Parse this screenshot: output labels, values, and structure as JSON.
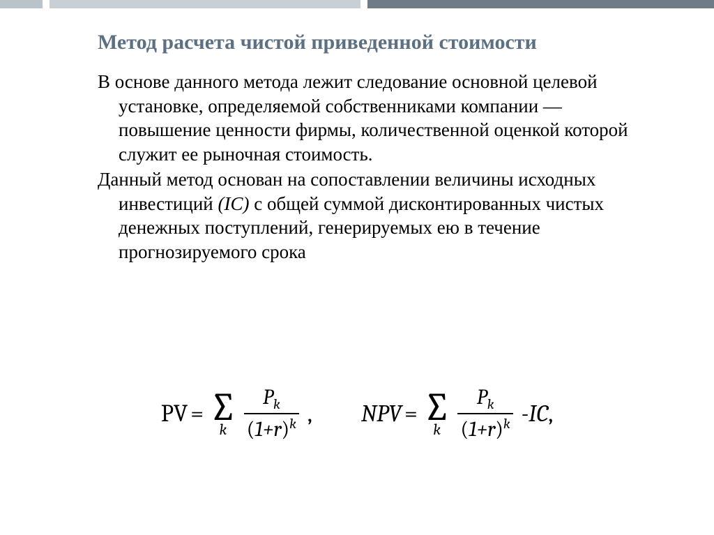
{
  "topbar": {
    "color_a": "#b9c3c9",
    "color_b": "#c8d0d5",
    "color_c": "#6e7c87"
  },
  "title": {
    "text": "Метод расчета чистой приведенной стоимости",
    "color": "#5b7083",
    "fontsize_pt": 22
  },
  "body": {
    "color": "#000000",
    "fontsize_pt": 20,
    "paragraphs": [
      {
        "plain": "В основе данного метода лежит следование основной целевой установке, определяемой собственниками компании — повышение ценности фирмы, количественной оценкой которой служит ее рыночная стоимость."
      },
      {
        "before_italic": "Данный метод основан на сопоставлении величины исходных инвестиций ",
        "italic": "(IC)",
        "after_italic": " с общей суммой дисконтированных чистых денежных поступлений, генерируемых ею в течение прогнозируемого срока"
      }
    ]
  },
  "formulas": {
    "pv": {
      "lhs": "PV",
      "sum_index": "k",
      "numerator_sym": "P",
      "numerator_sub": "k",
      "denom_inner": "1+r",
      "denom_exp": "k",
      "suffix": ","
    },
    "npv": {
      "lhs": "NPV",
      "sum_index": "k",
      "numerator_sym": "P",
      "numerator_sub": "k",
      "denom_inner": "1+r",
      "denom_exp": "k",
      "tail": "-IC",
      "suffix": ","
    }
  }
}
